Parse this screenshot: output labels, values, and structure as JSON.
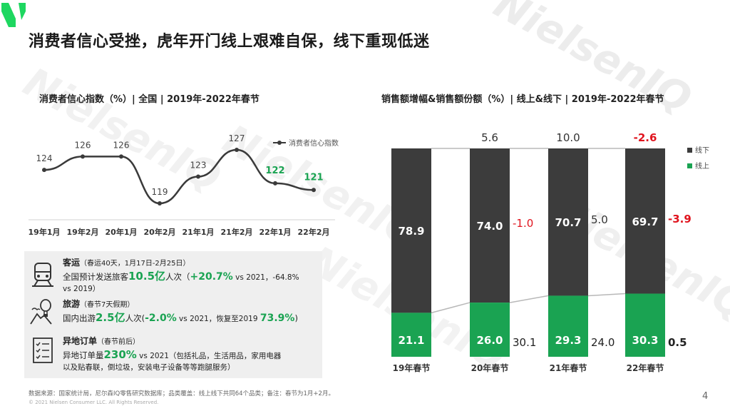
{
  "page_title": "消费者信心受挫，虎年开门线上艰难自保，线下重现低迷",
  "watermark": "NielsenIQ",
  "colors": {
    "green": "#1aa352",
    "dark": "#3c3c3c",
    "red": "#e0141e",
    "line": "#3a3a3a"
  },
  "left_chart_title": "消费者信心指数（%）| 全国 | 2019年-2022年春节",
  "right_chart_title": "销售额增幅&销售额份额（%）| 线上&线下 | 2019年-2022年春节",
  "chart_data": [
    {
      "type": "line",
      "title": "消费者信心指数（%）| 全国 | 2019年-2022年春节",
      "legend_label": "消费者信心指数",
      "categories": [
        "19年1月",
        "19年2月",
        "20年1月",
        "20年2月",
        "21年1月",
        "21年2月",
        "22年1月",
        "22年2月"
      ],
      "values": [
        124,
        126,
        126,
        119,
        123,
        127,
        122,
        121
      ],
      "value_labels": [
        "124",
        "126",
        "126",
        "119",
        "123",
        "127",
        "122",
        "121"
      ],
      "highlight_last_n": 2,
      "ylim": [
        116,
        130
      ]
    },
    {
      "type": "bar",
      "stacked": true,
      "title": "销售额增幅&销售额份额（%）| 线上&线下 | 2019年-2022年春节",
      "categories": [
        "19年春节",
        "20年春节",
        "21年春节",
        "22年春节"
      ],
      "series": [
        {
          "name": "线上",
          "values": [
            21.1,
            26.0,
            29.3,
            30.3
          ],
          "labels": [
            "21.1",
            "26.0",
            "29.3",
            "30.3"
          ]
        },
        {
          "name": "线下",
          "values": [
            78.9,
            74.0,
            70.7,
            69.7
          ],
          "labels": [
            "78.9",
            "74.0",
            "70.7",
            "69.7"
          ]
        }
      ],
      "total_growth": [
        null,
        "5.6",
        "10.0",
        "-2.6"
      ],
      "offline_growth": [
        null,
        "-1.0",
        "5.0",
        "-3.9"
      ],
      "online_growth": [
        null,
        "30.1",
        "24.0",
        "0.5"
      ],
      "legend": [
        "线下",
        "线上"
      ],
      "ylim": [
        0,
        100
      ]
    }
  ],
  "info": [
    {
      "icon": "train-icon",
      "head": "客运",
      "sub": "（春运40天，1月17日-2月25日）",
      "l1a": "全国预计发送旅客",
      "l1b": "10.5亿",
      "l1c": "人次（",
      "l1d": "+20.7%",
      "l1e": " vs 2021，-64.8%",
      "l2": "vs 2019）"
    },
    {
      "icon": "hot-air-balloon-icon",
      "head": "旅游",
      "sub": "（春节7天假期）",
      "l1a": "国内出游",
      "l1b": "2.5亿",
      "l1c": "人次(",
      "l1d": "-2.0%",
      "l1e": " vs 2021，恢复至2019 ",
      "l1f": "73.9%",
      "l1g": ")"
    },
    {
      "icon": "checklist-icon",
      "head": "异地订单",
      "sub": "（春节前后）",
      "l1a": "异地订单量",
      "l1b": "230%",
      "l1c": " vs 2021（包括礼品，生活用品，家用电器",
      "l2": "以及贴春联，倒垃圾，安装电子设备等等跑腿服务）"
    }
  ],
  "source": "数据来源：国家统计局，尼尔森IQ零售研究数据库；品类覆盖：线上线下共同64个品类；备注：春节为1月+2月。",
  "copyright": "© 2021 Nielsen Consumer LLC. All Rights Reserved.",
  "page_number": "4"
}
